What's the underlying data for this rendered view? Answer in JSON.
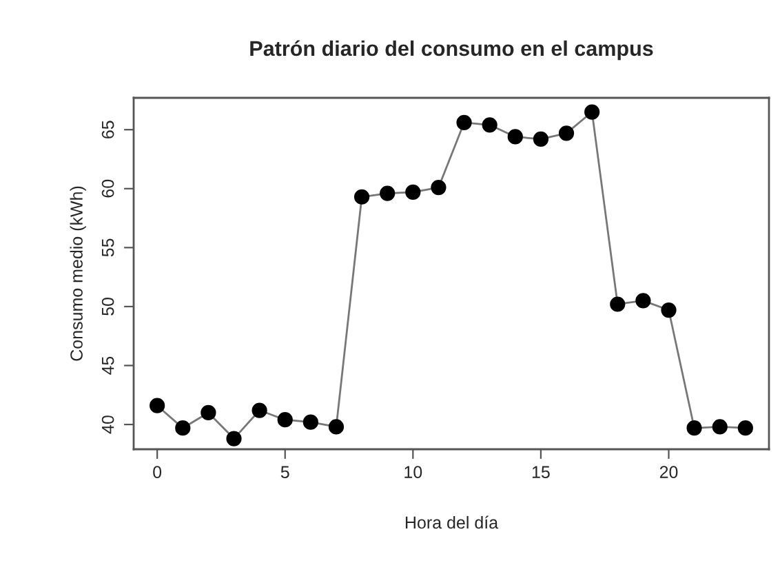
{
  "chart_data": {
    "type": "line",
    "title": "Patrón diario del consumo en el campus",
    "xlabel": "Hora del día",
    "ylabel": "Consumo medio (kWh)",
    "x": [
      0,
      1,
      2,
      3,
      4,
      5,
      6,
      7,
      8,
      9,
      10,
      11,
      12,
      13,
      14,
      15,
      16,
      17,
      18,
      19,
      20,
      21,
      22,
      23
    ],
    "series": [
      {
        "color": "#000000",
        "values": [
          41.6,
          39.7,
          41.0,
          38.8,
          41.2,
          40.4,
          40.2,
          39.8,
          59.3,
          59.6,
          59.7,
          60.1,
          65.6,
          65.4,
          64.4,
          64.2,
          64.7,
          66.5,
          50.2,
          50.5,
          49.7,
          39.7,
          39.8,
          39.7
        ]
      }
    ],
    "xlim": [
      -0.92,
      23.92
    ],
    "ylim": [
      37.9,
      67.7
    ],
    "xticks": [
      0,
      5,
      10,
      15,
      20
    ],
    "yticks": [
      40,
      45,
      50,
      55,
      60,
      65
    ],
    "marker": "circle",
    "line_style": "solid",
    "grid": false,
    "legend": false
  }
}
